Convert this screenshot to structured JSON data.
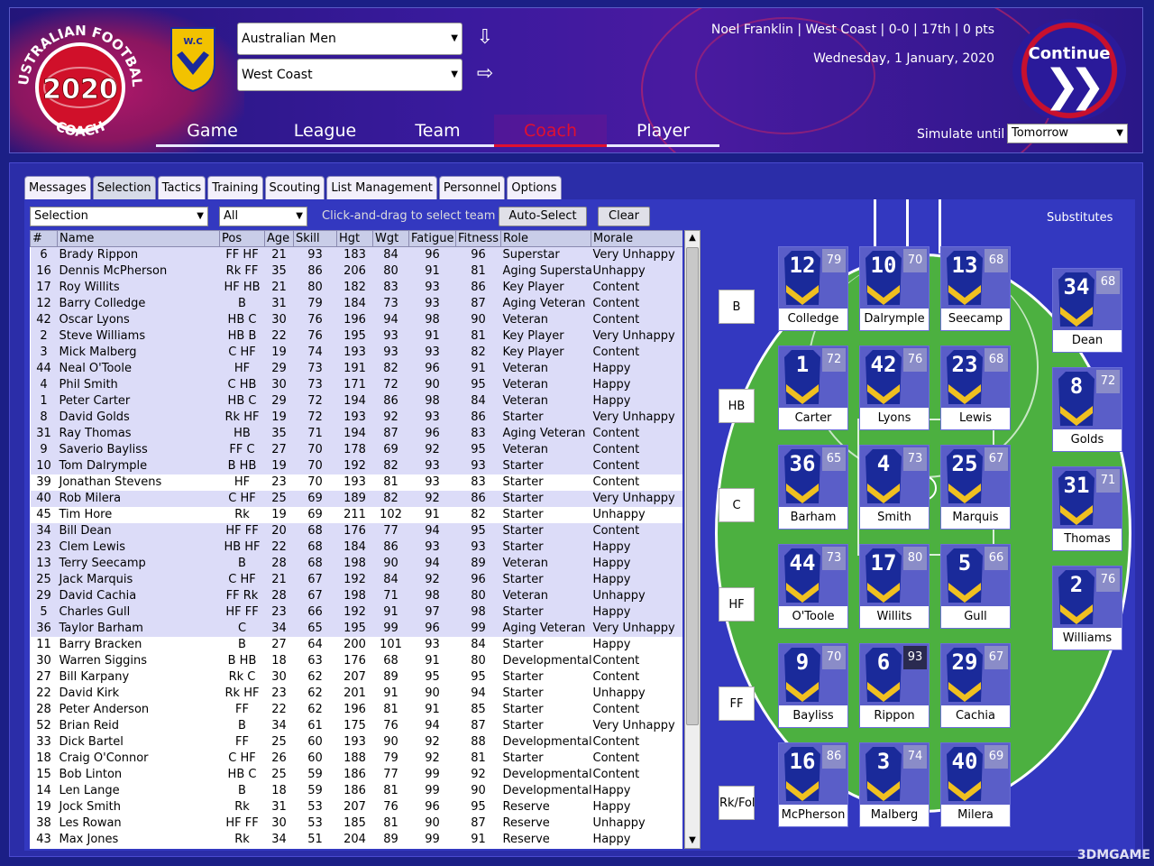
{
  "header": {
    "logo_text_top": "AUSTRALIAN FOOTBALL",
    "logo_text_bottom": "COACH",
    "logo_year": "2020",
    "club_badge_text": "W.C",
    "competition": "Australian Men",
    "club": "West Coast",
    "nav": [
      {
        "label": "Game",
        "active": false
      },
      {
        "label": "League",
        "active": false
      },
      {
        "label": "Team",
        "active": false
      },
      {
        "label": "Coach",
        "active": true
      },
      {
        "label": "Player",
        "active": false
      }
    ],
    "status": "Noel Franklin | West Coast | 0-0 | 17th | 0 pts",
    "date": "Wednesday, 1 January, 2020",
    "continue_label": "Continue",
    "simulate_label": "Simulate until",
    "simulate_value": "Tomorrow"
  },
  "tabs": [
    "Messages",
    "Selection",
    "Tactics",
    "Training",
    "Scouting",
    "List Management",
    "Personnel",
    "Options"
  ],
  "active_tab": "Selection",
  "controls": {
    "filter_value": "Selection",
    "position_value": "All",
    "hint": "Click-and-drag to select team",
    "autoselect_label": "Auto-Select",
    "clear_label": "Clear"
  },
  "table": {
    "columns": [
      "#",
      "Name",
      "Pos",
      "Age",
      "Skill",
      "Hgt",
      "Wgt",
      "Fatigue",
      "Fitness",
      "Role",
      "Morale"
    ],
    "rows": [
      {
        "num": "6",
        "name": "Brady Rippon",
        "pos": "FF HF",
        "age": "21",
        "skill": "93",
        "hgt": "183",
        "wgt": "84",
        "fatigue": "96",
        "fitness": "96",
        "role": "Superstar",
        "morale": "Very Unhappy",
        "selected": true
      },
      {
        "num": "16",
        "name": "Dennis McPherson",
        "pos": "Rk FF",
        "age": "35",
        "skill": "86",
        "hgt": "206",
        "wgt": "80",
        "fatigue": "91",
        "fitness": "81",
        "role": "Aging Supersta",
        "morale": "Unhappy",
        "selected": true
      },
      {
        "num": "17",
        "name": "Roy Willits",
        "pos": "HF HB",
        "age": "21",
        "skill": "80",
        "hgt": "182",
        "wgt": "83",
        "fatigue": "93",
        "fitness": "86",
        "role": "Key Player",
        "morale": "Content",
        "selected": true
      },
      {
        "num": "12",
        "name": "Barry Colledge",
        "pos": "B",
        "age": "31",
        "skill": "79",
        "hgt": "184",
        "wgt": "73",
        "fatigue": "93",
        "fitness": "87",
        "role": "Aging Veteran",
        "morale": "Content",
        "selected": true
      },
      {
        "num": "42",
        "name": "Oscar Lyons",
        "pos": "HB C",
        "age": "30",
        "skill": "76",
        "hgt": "196",
        "wgt": "94",
        "fatigue": "98",
        "fitness": "90",
        "role": "Veteran",
        "morale": "Content",
        "selected": true
      },
      {
        "num": "2",
        "name": "Steve Williams",
        "pos": "HB B",
        "age": "22",
        "skill": "76",
        "hgt": "195",
        "wgt": "93",
        "fatigue": "91",
        "fitness": "81",
        "role": "Key Player",
        "morale": "Very Unhappy",
        "selected": true
      },
      {
        "num": "3",
        "name": "Mick Malberg",
        "pos": "C HF",
        "age": "19",
        "skill": "74",
        "hgt": "193",
        "wgt": "93",
        "fatigue": "93",
        "fitness": "82",
        "role": "Key Player",
        "morale": "Content",
        "selected": true
      },
      {
        "num": "44",
        "name": "Neal O'Toole",
        "pos": "HF",
        "age": "29",
        "skill": "73",
        "hgt": "191",
        "wgt": "82",
        "fatigue": "96",
        "fitness": "91",
        "role": "Veteran",
        "morale": "Happy",
        "selected": true
      },
      {
        "num": "4",
        "name": "Phil Smith",
        "pos": "C HB",
        "age": "30",
        "skill": "73",
        "hgt": "171",
        "wgt": "72",
        "fatigue": "90",
        "fitness": "95",
        "role": "Veteran",
        "morale": "Happy",
        "selected": true
      },
      {
        "num": "1",
        "name": "Peter Carter",
        "pos": "HB C",
        "age": "29",
        "skill": "72",
        "hgt": "194",
        "wgt": "86",
        "fatigue": "98",
        "fitness": "84",
        "role": "Veteran",
        "morale": "Happy",
        "selected": true
      },
      {
        "num": "8",
        "name": "David Golds",
        "pos": "Rk HF",
        "age": "19",
        "skill": "72",
        "hgt": "193",
        "wgt": "92",
        "fatigue": "93",
        "fitness": "86",
        "role": "Starter",
        "morale": "Very Unhappy",
        "selected": true
      },
      {
        "num": "31",
        "name": "Ray Thomas",
        "pos": "HB",
        "age": "35",
        "skill": "71",
        "hgt": "194",
        "wgt": "87",
        "fatigue": "96",
        "fitness": "83",
        "role": "Aging Veteran",
        "morale": "Content",
        "selected": true
      },
      {
        "num": "9",
        "name": "Saverio Bayliss",
        "pos": "FF C",
        "age": "27",
        "skill": "70",
        "hgt": "178",
        "wgt": "69",
        "fatigue": "92",
        "fitness": "95",
        "role": "Veteran",
        "morale": "Content",
        "selected": true
      },
      {
        "num": "10",
        "name": "Tom Dalrymple",
        "pos": "B HB",
        "age": "19",
        "skill": "70",
        "hgt": "192",
        "wgt": "82",
        "fatigue": "93",
        "fitness": "93",
        "role": "Starter",
        "morale": "Content",
        "selected": true
      },
      {
        "num": "39",
        "name": "Jonathan Stevens",
        "pos": "HF",
        "age": "23",
        "skill": "70",
        "hgt": "193",
        "wgt": "81",
        "fatigue": "93",
        "fitness": "83",
        "role": "Starter",
        "morale": "Content",
        "selected": false
      },
      {
        "num": "40",
        "name": "Rob Milera",
        "pos": "C HF",
        "age": "25",
        "skill": "69",
        "hgt": "189",
        "wgt": "82",
        "fatigue": "92",
        "fitness": "86",
        "role": "Starter",
        "morale": "Very Unhappy",
        "selected": true
      },
      {
        "num": "45",
        "name": "Tim Hore",
        "pos": "Rk",
        "age": "19",
        "skill": "69",
        "hgt": "211",
        "wgt": "102",
        "fatigue": "91",
        "fitness": "82",
        "role": "Starter",
        "morale": "Unhappy",
        "selected": false
      },
      {
        "num": "34",
        "name": "Bill Dean",
        "pos": "HF FF",
        "age": "20",
        "skill": "68",
        "hgt": "176",
        "wgt": "77",
        "fatigue": "94",
        "fitness": "95",
        "role": "Starter",
        "morale": "Content",
        "selected": true
      },
      {
        "num": "23",
        "name": "Clem Lewis",
        "pos": "HB HF",
        "age": "22",
        "skill": "68",
        "hgt": "184",
        "wgt": "86",
        "fatigue": "93",
        "fitness": "93",
        "role": "Starter",
        "morale": "Happy",
        "selected": true
      },
      {
        "num": "13",
        "name": "Terry Seecamp",
        "pos": "B",
        "age": "28",
        "skill": "68",
        "hgt": "198",
        "wgt": "90",
        "fatigue": "94",
        "fitness": "89",
        "role": "Veteran",
        "morale": "Happy",
        "selected": true
      },
      {
        "num": "25",
        "name": "Jack Marquis",
        "pos": "C HF",
        "age": "21",
        "skill": "67",
        "hgt": "192",
        "wgt": "84",
        "fatigue": "92",
        "fitness": "96",
        "role": "Starter",
        "morale": "Happy",
        "selected": true
      },
      {
        "num": "29",
        "name": "David Cachia",
        "pos": "FF Rk",
        "age": "28",
        "skill": "67",
        "hgt": "198",
        "wgt": "71",
        "fatigue": "98",
        "fitness": "80",
        "role": "Veteran",
        "morale": "Unhappy",
        "selected": true
      },
      {
        "num": "5",
        "name": "Charles Gull",
        "pos": "HF FF",
        "age": "23",
        "skill": "66",
        "hgt": "192",
        "wgt": "91",
        "fatigue": "97",
        "fitness": "98",
        "role": "Starter",
        "morale": "Happy",
        "selected": true
      },
      {
        "num": "36",
        "name": "Taylor Barham",
        "pos": "C",
        "age": "34",
        "skill": "65",
        "hgt": "195",
        "wgt": "99",
        "fatigue": "96",
        "fitness": "99",
        "role": "Aging Veteran",
        "morale": "Very Unhappy",
        "selected": true
      },
      {
        "num": "11",
        "name": "Barry Bracken",
        "pos": "B",
        "age": "27",
        "skill": "64",
        "hgt": "200",
        "wgt": "101",
        "fatigue": "93",
        "fitness": "84",
        "role": "Starter",
        "morale": "Happy",
        "selected": false
      },
      {
        "num": "30",
        "name": "Warren Siggins",
        "pos": "B HB",
        "age": "18",
        "skill": "63",
        "hgt": "176",
        "wgt": "68",
        "fatigue": "91",
        "fitness": "80",
        "role": "Developmental",
        "morale": "Content",
        "selected": false
      },
      {
        "num": "27",
        "name": "Bill Karpany",
        "pos": "Rk C",
        "age": "30",
        "skill": "62",
        "hgt": "207",
        "wgt": "89",
        "fatigue": "95",
        "fitness": "95",
        "role": "Starter",
        "morale": "Content",
        "selected": false
      },
      {
        "num": "22",
        "name": "David Kirk",
        "pos": "Rk HF",
        "age": "23",
        "skill": "62",
        "hgt": "201",
        "wgt": "91",
        "fatigue": "90",
        "fitness": "94",
        "role": "Starter",
        "morale": "Unhappy",
        "selected": false
      },
      {
        "num": "28",
        "name": "Peter Anderson",
        "pos": "FF",
        "age": "22",
        "skill": "62",
        "hgt": "196",
        "wgt": "81",
        "fatigue": "91",
        "fitness": "85",
        "role": "Starter",
        "morale": "Content",
        "selected": false
      },
      {
        "num": "52",
        "name": "Brian Reid",
        "pos": "B",
        "age": "34",
        "skill": "61",
        "hgt": "175",
        "wgt": "76",
        "fatigue": "94",
        "fitness": "87",
        "role": "Starter",
        "morale": "Very Unhappy",
        "selected": false
      },
      {
        "num": "33",
        "name": "Dick Bartel",
        "pos": "FF",
        "age": "25",
        "skill": "60",
        "hgt": "193",
        "wgt": "90",
        "fatigue": "92",
        "fitness": "88",
        "role": "Developmental",
        "morale": "Content",
        "selected": false
      },
      {
        "num": "18",
        "name": "Craig O'Connor",
        "pos": "C HF",
        "age": "26",
        "skill": "60",
        "hgt": "188",
        "wgt": "79",
        "fatigue": "92",
        "fitness": "81",
        "role": "Starter",
        "morale": "Content",
        "selected": false
      },
      {
        "num": "15",
        "name": "Bob Linton",
        "pos": "HB C",
        "age": "25",
        "skill": "59",
        "hgt": "186",
        "wgt": "77",
        "fatigue": "99",
        "fitness": "92",
        "role": "Developmental",
        "morale": "Content",
        "selected": false
      },
      {
        "num": "14",
        "name": "Len Lange",
        "pos": "B",
        "age": "18",
        "skill": "59",
        "hgt": "186",
        "wgt": "81",
        "fatigue": "99",
        "fitness": "90",
        "role": "Developmental",
        "morale": "Happy",
        "selected": false
      },
      {
        "num": "19",
        "name": "Jock Smith",
        "pos": "Rk",
        "age": "31",
        "skill": "53",
        "hgt": "207",
        "wgt": "76",
        "fatigue": "96",
        "fitness": "95",
        "role": "Reserve",
        "morale": "Happy",
        "selected": false
      },
      {
        "num": "38",
        "name": "Les Rowan",
        "pos": "HF FF",
        "age": "30",
        "skill": "53",
        "hgt": "185",
        "wgt": "81",
        "fatigue": "90",
        "fitness": "87",
        "role": "Reserve",
        "morale": "Unhappy",
        "selected": false
      },
      {
        "num": "43",
        "name": "Max Jones",
        "pos": "Rk",
        "age": "34",
        "skill": "51",
        "hgt": "204",
        "wgt": "89",
        "fatigue": "99",
        "fitness": "91",
        "role": "Reserve",
        "morale": "Happy",
        "selected": false
      }
    ]
  },
  "field": {
    "line_labels": [
      "B",
      "HB",
      "C",
      "HF",
      "FF",
      "Rk/Fol"
    ],
    "lines": [
      [
        {
          "num": "12",
          "rating": "79",
          "name": "Colledge"
        },
        {
          "num": "10",
          "rating": "70",
          "name": "Dalrymple"
        },
        {
          "num": "13",
          "rating": "68",
          "name": "Seecamp"
        }
      ],
      [
        {
          "num": "1",
          "rating": "72",
          "name": "Carter"
        },
        {
          "num": "42",
          "rating": "76",
          "name": "Lyons"
        },
        {
          "num": "23",
          "rating": "68",
          "name": "Lewis"
        }
      ],
      [
        {
          "num": "36",
          "rating": "65",
          "name": "Barham"
        },
        {
          "num": "4",
          "rating": "73",
          "name": "Smith"
        },
        {
          "num": "25",
          "rating": "67",
          "name": "Marquis"
        }
      ],
      [
        {
          "num": "44",
          "rating": "73",
          "name": "O'Toole"
        },
        {
          "num": "17",
          "rating": "80",
          "name": "Willits"
        },
        {
          "num": "5",
          "rating": "66",
          "name": "Gull"
        }
      ],
      [
        {
          "num": "9",
          "rating": "70",
          "name": "Bayliss"
        },
        {
          "num": "6",
          "rating": "93",
          "name": "Rippon"
        },
        {
          "num": "29",
          "rating": "67",
          "name": "Cachia"
        }
      ],
      [
        {
          "num": "16",
          "rating": "86",
          "name": "McPherson"
        },
        {
          "num": "3",
          "rating": "74",
          "name": "Malberg"
        },
        {
          "num": "40",
          "rating": "69",
          "name": "Milera"
        }
      ]
    ],
    "subs_label": "Substitutes",
    "subs": [
      {
        "num": "34",
        "rating": "68",
        "name": "Dean"
      },
      {
        "num": "8",
        "rating": "72",
        "name": "Golds"
      },
      {
        "num": "31",
        "rating": "71",
        "name": "Thomas"
      },
      {
        "num": "2",
        "rating": "76",
        "name": "Williams"
      }
    ]
  },
  "watermark": "3DMGAME",
  "colors": {
    "accent_red": "#e01030",
    "jersey_blue": "#1a2a9a",
    "jersey_gold": "#f0c020"
  }
}
